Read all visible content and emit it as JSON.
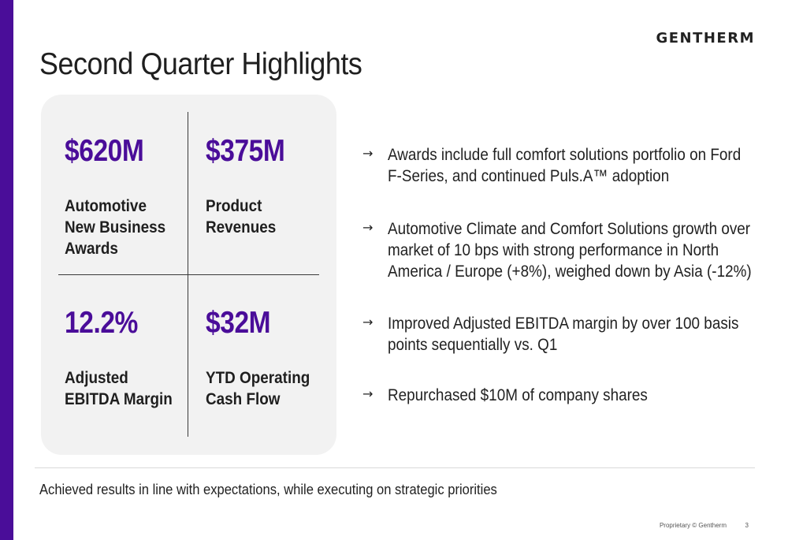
{
  "brand": {
    "logo": "GENTHERM",
    "accent": "#4a0d99"
  },
  "title": "Second Quarter Highlights",
  "kpis": [
    {
      "value": "$620M",
      "label_lines": [
        "Automotive",
        "New Business",
        "Awards"
      ]
    },
    {
      "value": "$375M",
      "label_lines": [
        "Product",
        "Revenues"
      ]
    },
    {
      "value": "12.2%",
      "label_lines": [
        "Adjusted",
        "EBITDA Margin"
      ]
    },
    {
      "value": "$32M",
      "label_lines": [
        "YTD Operating",
        "Cash Flow"
      ]
    }
  ],
  "bullets": [
    {
      "icon": "arrow-right-icon",
      "lines": [
        "Awards include full comfort solutions portfolio on Ford",
        "F-Series, and continued Puls.A™ adoption"
      ]
    },
    {
      "icon": "arrow-right-icon",
      "lines": [
        "Automotive Climate and Comfort Solutions growth over",
        "market of 10 bps with strong performance in North",
        "America / Europe (+8%), weighed down by Asia (-12%)"
      ]
    },
    {
      "icon": "arrow-right-icon",
      "lines": [
        "Improved Adjusted EBITDA margin by over 100 basis",
        "points sequentially vs. Q1"
      ]
    },
    {
      "icon": "arrow-right-icon",
      "lines": [
        "Repurchased $10M of company shares"
      ]
    }
  ],
  "footer": {
    "summary": "Achieved results in line with expectations, while executing on strategic priorities",
    "proprietary": "Proprietary © Gentherm",
    "page_number": "3"
  }
}
